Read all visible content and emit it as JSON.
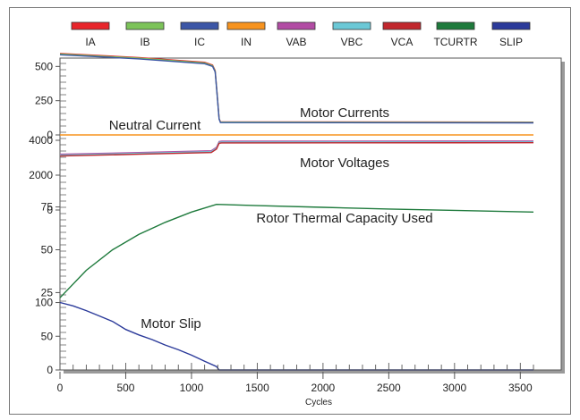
{
  "chart_data": {
    "type": "line",
    "xlabel": "Cycles",
    "xlim": [
      0,
      3600
    ],
    "x_ticks": [
      "0",
      "500",
      "1000",
      "1500",
      "2000",
      "2500",
      "3000",
      "3500"
    ],
    "legend": {
      "placement": "top",
      "entries": [
        {
          "label": "IA",
          "color": "#e8252b"
        },
        {
          "label": "IB",
          "color": "#7cc359"
        },
        {
          "label": "IC",
          "color": "#3c56a6"
        },
        {
          "label": "IN",
          "color": "#f7931e"
        },
        {
          "label": "VAB",
          "color": "#b24ca4"
        },
        {
          "label": "VBC",
          "color": "#6bc8d6"
        },
        {
          "label": "VCA",
          "color": "#c1272d"
        },
        {
          "label": "TCURTR",
          "color": "#1e7a3c"
        },
        {
          "label": "SLIP",
          "color": "#2b3a9a"
        }
      ]
    },
    "panels": [
      {
        "name": "currents",
        "ylim": [
          0,
          600
        ],
        "y_ticks": [
          "0",
          "250",
          "500"
        ],
        "annotations": [
          "Neutral Current",
          "Motor Currents"
        ],
        "series": [
          {
            "name": "IA",
            "color": "#e8252b",
            "x": [
              0,
              600,
              1100,
              1160,
              1180,
              1195,
              1210,
              1220,
              1300,
              3600
            ],
            "y": [
              595,
              565,
              530,
              510,
              470,
              300,
              120,
              95,
              95,
              93
            ]
          },
          {
            "name": "IB",
            "color": "#7cc359",
            "x": [
              0,
              600,
              1100,
              1160,
              1180,
              1195,
              1210,
              1220,
              1300,
              3600
            ],
            "y": [
              590,
              560,
              525,
              505,
              465,
              295,
              118,
              93,
              93,
              91
            ]
          },
          {
            "name": "IC",
            "color": "#3c56a6",
            "x": [
              0,
              600,
              1100,
              1160,
              1180,
              1195,
              1210,
              1220,
              1300,
              3600
            ],
            "y": [
              585,
              555,
              520,
              500,
              460,
              290,
              115,
              90,
              90,
              88
            ]
          },
          {
            "name": "IN",
            "color": "#f7931e",
            "x": [
              0,
              3600
            ],
            "y": [
              0,
              0
            ]
          }
        ]
      },
      {
        "name": "voltages",
        "ylim": [
          0,
          4000
        ],
        "y_ticks": [
          "0",
          "2000",
          "4000"
        ],
        "annotations": [
          "Motor Voltages"
        ],
        "series": [
          {
            "name": "VAB",
            "color": "#b24ca4",
            "x": [
              0,
              600,
              1150,
              1190,
              1210,
              1230,
              3600
            ],
            "y": [
              3200,
              3300,
              3400,
              3600,
              3930,
              3950,
              3960
            ]
          },
          {
            "name": "VBC",
            "color": "#6bc8d6",
            "x": [
              0,
              600,
              1150,
              1190,
              1210,
              1230,
              3600
            ],
            "y": [
              3150,
              3250,
              3350,
              3550,
              3880,
              3900,
              3910
            ]
          },
          {
            "name": "VCA",
            "color": "#c1272d",
            "x": [
              0,
              600,
              1150,
              1190,
              1210,
              1230,
              3600
            ],
            "y": [
              3100,
              3200,
              3300,
              3500,
              3830,
              3850,
              3860
            ]
          }
        ]
      },
      {
        "name": "thermal",
        "ylim": [
          20,
          80
        ],
        "y_ticks": [
          "25",
          "50",
          "75"
        ],
        "annotations": [
          "Rotor Thermal Capacity Used"
        ],
        "series": [
          {
            "name": "TCURTR",
            "color": "#1e7a3c",
            "x": [
              0,
              200,
              400,
              600,
              800,
              1000,
              1190,
              1500,
              2000,
              2500,
              3000,
              3600
            ],
            "y": [
              22,
              38,
              50,
              59,
              66,
              72,
              76.5,
              75.8,
              74.8,
              73.8,
              73,
              72
            ]
          }
        ]
      },
      {
        "name": "slip",
        "ylim": [
          0,
          110
        ],
        "y_ticks": [
          "0",
          "50",
          "100"
        ],
        "annotations": [
          "Motor Slip"
        ],
        "series": [
          {
            "name": "SLIP",
            "color": "#2b3a9a",
            "x": [
              0,
              100,
              200,
              300,
              400,
              500,
              600,
              700,
              800,
              900,
              1000,
              1100,
              1190,
              1210,
              3600
            ],
            "y": [
              100,
              95,
              88,
              80,
              72,
              60,
              52,
              45,
              37,
              30,
              22,
              13,
              5,
              0,
              0
            ]
          }
        ]
      }
    ]
  }
}
